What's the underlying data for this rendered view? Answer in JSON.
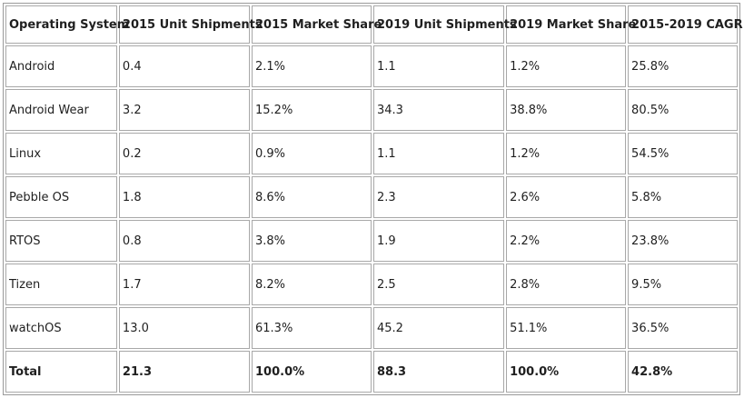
{
  "table": {
    "headers": [
      "Operating System",
      "2015 Unit Shipments",
      "2015 Market Share",
      "2019 Unit Shipments",
      "2019 Market Share",
      "2015-2019 CAGR"
    ],
    "rows": [
      [
        "Android",
        "0.4",
        "2.1%",
        "1.1",
        "1.2%",
        "25.8%"
      ],
      [
        "Android Wear",
        "3.2",
        "15.2%",
        "34.3",
        "38.8%",
        "80.5%"
      ],
      [
        "Linux",
        "0.2",
        "0.9%",
        "1.1",
        "1.2%",
        "54.5%"
      ],
      [
        "Pebble OS",
        "1.8",
        "8.6%",
        "2.3",
        "2.6%",
        "5.8%"
      ],
      [
        "RTOS",
        "0.8",
        "3.8%",
        "1.9",
        "2.2%",
        "23.8%"
      ],
      [
        "Tizen",
        "1.7",
        "8.2%",
        "2.5",
        "2.8%",
        "9.5%"
      ],
      [
        "watchOS",
        "13.0",
        "61.3%",
        "45.2",
        "51.1%",
        "36.5%"
      ],
      [
        "Total",
        "21.3",
        "100.0%",
        "88.3",
        "100.0%",
        "42.8%"
      ]
    ]
  }
}
